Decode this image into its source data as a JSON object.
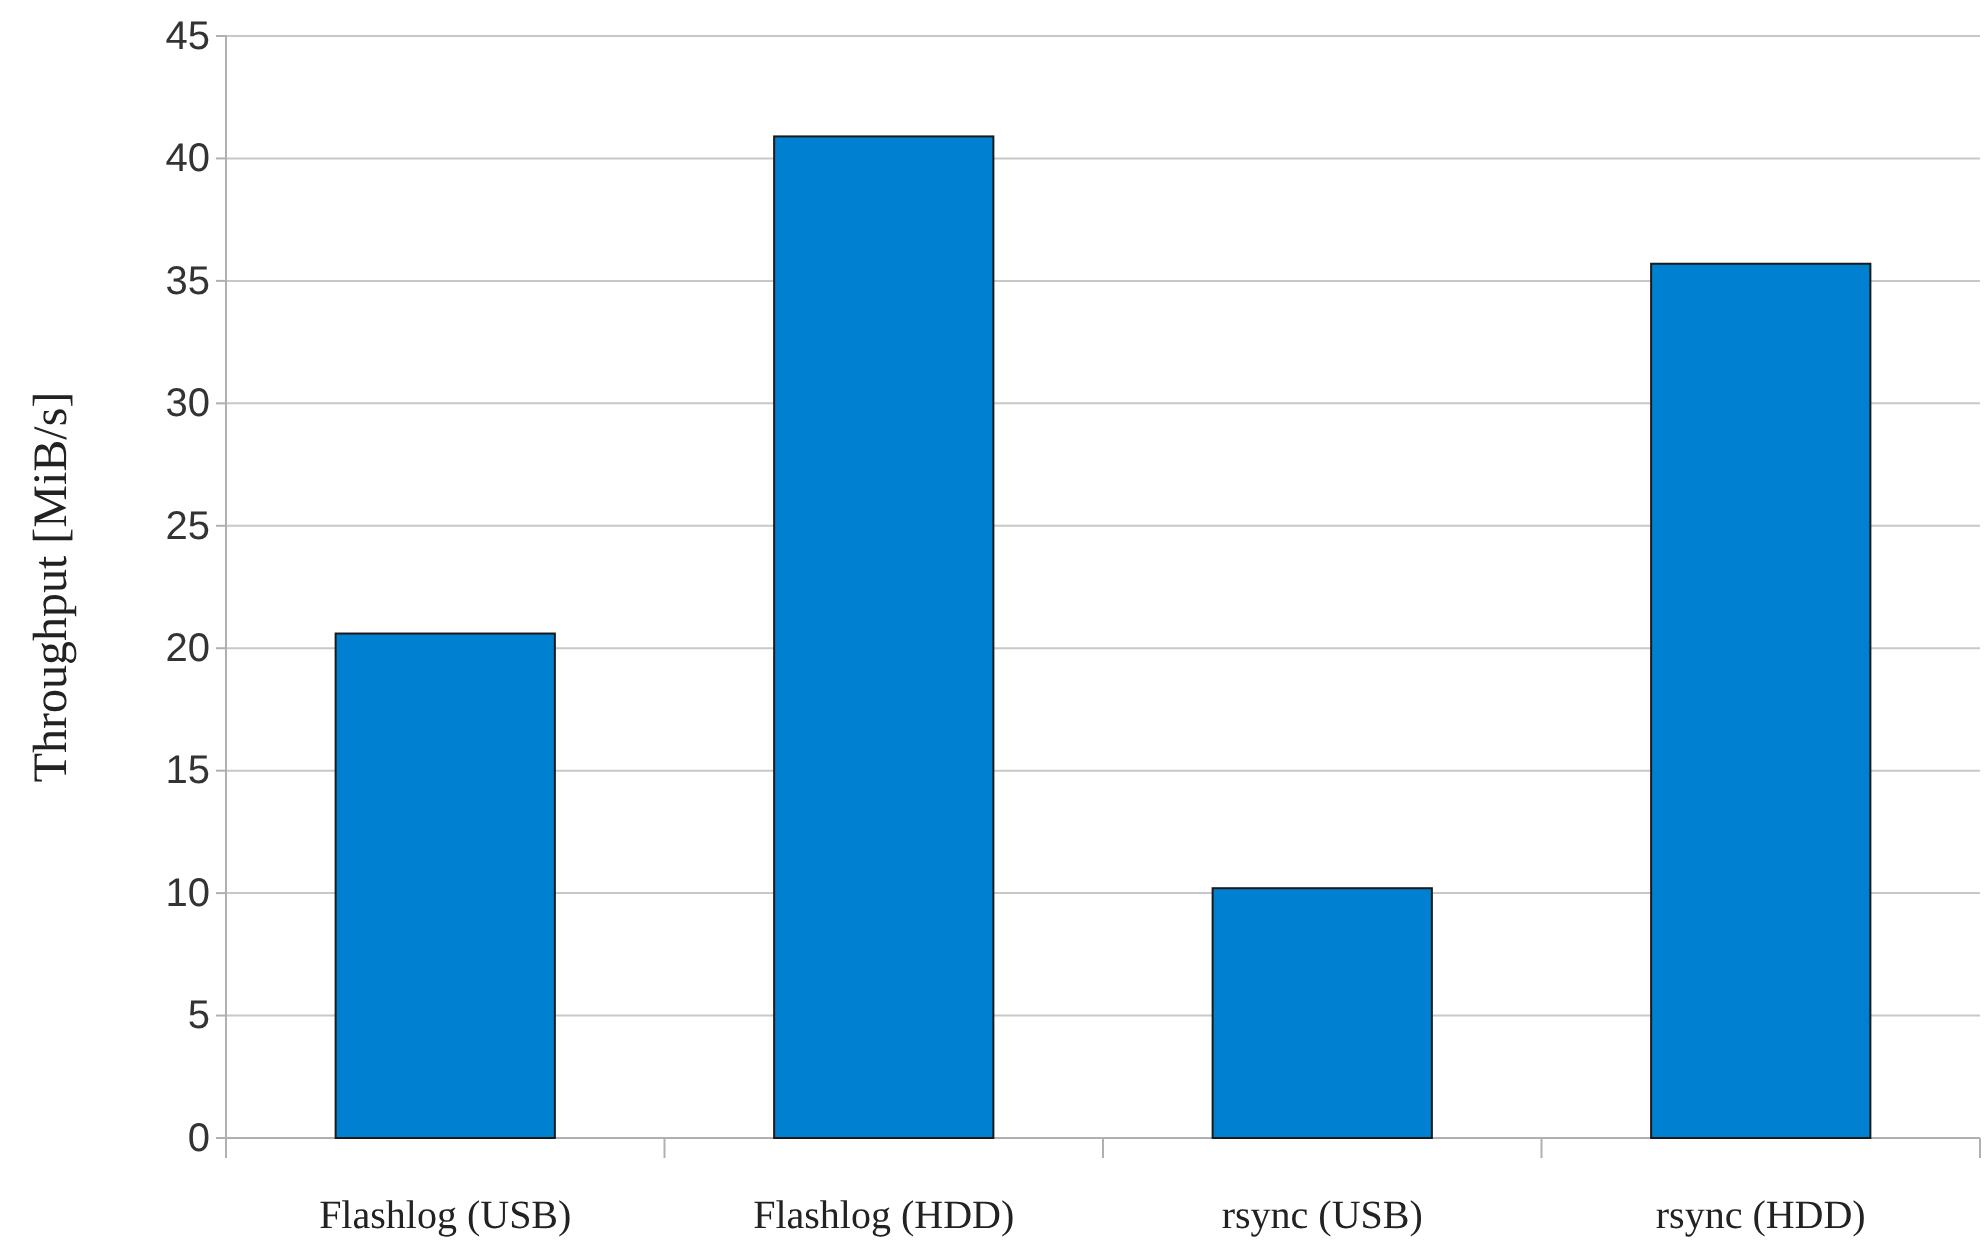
{
  "chart_data": {
    "type": "bar",
    "ylabel": "Throughput [MiB/s]",
    "categories": [
      "Flashlog (USB)",
      "Flashlog (HDD)",
      "rsync (USB)",
      "rsync (HDD)"
    ],
    "values": [
      20.6,
      40.9,
      10.2,
      35.7
    ],
    "color": "#0080d0",
    "ylim": [
      0,
      45
    ],
    "yticks": [
      0,
      5,
      10,
      15,
      20,
      25,
      30,
      35,
      40,
      45
    ],
    "grid": "y"
  }
}
